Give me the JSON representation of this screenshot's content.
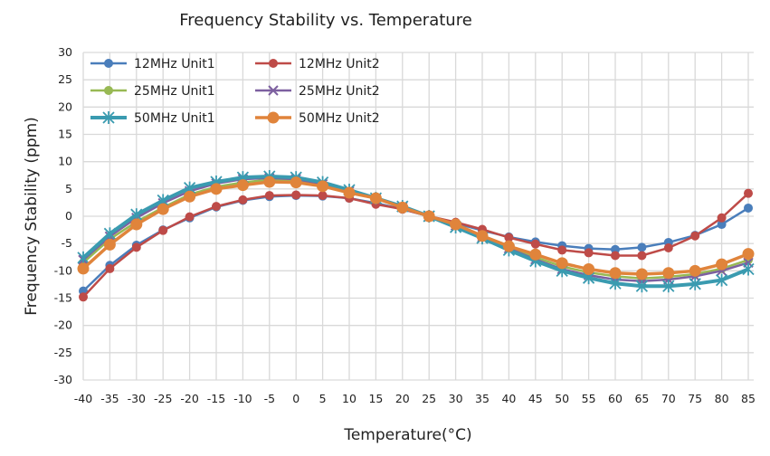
{
  "chart_data": {
    "type": "line",
    "title": "Frequency Stability vs. Temperature",
    "xlabel": "Temperature(°C)",
    "ylabel": "Frequency Stability (ppm)",
    "x": [
      -40,
      -35,
      -30,
      -25,
      -20,
      -15,
      -10,
      -5,
      0,
      5,
      10,
      15,
      20,
      25,
      30,
      35,
      40,
      45,
      50,
      55,
      60,
      65,
      70,
      75,
      80,
      85
    ],
    "ylim": [
      -30,
      30
    ],
    "yticks": [
      30,
      25,
      20,
      15,
      10,
      5,
      0,
      -5,
      -10,
      -15,
      -20,
      -25,
      -30
    ],
    "grid": true,
    "legend": "top-left",
    "series": [
      {
        "name": "12MHz Unit1",
        "color": "#4a7ebb",
        "marker": "circle",
        "values": [
          -13.7,
          -9,
          -5.3,
          -2.5,
          -0.3,
          1.7,
          2.9,
          3.6,
          3.8,
          3.7,
          3.3,
          2.4,
          1.3,
          0,
          -1.3,
          -2.6,
          -3.8,
          -4.7,
          -5.4,
          -5.9,
          -6.1,
          -5.7,
          -4.8,
          -3.5,
          -1.5,
          1.5
        ]
      },
      {
        "name": "12MHz Unit2",
        "color": "#be4b48",
        "marker": "circle",
        "values": [
          -14.8,
          -9.6,
          -5.7,
          -2.6,
          -0.1,
          1.8,
          3.0,
          3.8,
          3.9,
          3.8,
          3.3,
          2.2,
          1.3,
          0,
          -1.1,
          -2.4,
          -3.9,
          -5.1,
          -6.2,
          -6.7,
          -7.2,
          -7.2,
          -5.8,
          -3.6,
          -0.3,
          4.2
        ]
      },
      {
        "name": "25MHz Unit1",
        "color": "#98b954",
        "marker": "circle",
        "values": [
          -8.5,
          -4.2,
          -1,
          1.6,
          4,
          5.4,
          6.2,
          6.7,
          6.6,
          5.8,
          4.5,
          3.2,
          1.7,
          0,
          -1.6,
          -3.7,
          -5.6,
          -7.5,
          -9.2,
          -10.3,
          -11,
          -11.4,
          -11.1,
          -10.6,
          -9.6,
          -8
        ]
      },
      {
        "name": "25MHz Unit2",
        "color": "#7d60a0",
        "marker": "x",
        "values": [
          -8,
          -3.7,
          -0.3,
          2.4,
          4.6,
          6,
          6.8,
          7,
          6.8,
          5.9,
          4.6,
          3.2,
          1.7,
          0,
          -1.7,
          -3.8,
          -5.9,
          -7.9,
          -9.7,
          -10.8,
          -11.6,
          -11.9,
          -11.6,
          -11,
          -10,
          -8.5
        ]
      },
      {
        "name": "50MHz Unit1",
        "color": "#3a9bb0",
        "marker": "star",
        "values": [
          -7.6,
          -3.2,
          0.3,
          2.9,
          5.2,
          6.3,
          7.1,
          7.3,
          7.1,
          6.2,
          4.8,
          3.3,
          1.8,
          0,
          -2,
          -4,
          -6.2,
          -8.2,
          -10,
          -11.3,
          -12.3,
          -12.8,
          -12.8,
          -12.4,
          -11.7,
          -9.7
        ]
      },
      {
        "name": "50MHz Unit2",
        "color": "#e0843b",
        "marker": "circle",
        "values": [
          -9.6,
          -5.2,
          -1.5,
          1.3,
          3.6,
          5,
          5.7,
          6.3,
          6.2,
          5.5,
          4.3,
          3.3,
          1.6,
          0,
          -1.5,
          -3.6,
          -5.5,
          -7,
          -8.6,
          -9.7,
          -10.4,
          -10.6,
          -10.4,
          -10,
          -8.8,
          -6.9
        ]
      }
    ]
  }
}
